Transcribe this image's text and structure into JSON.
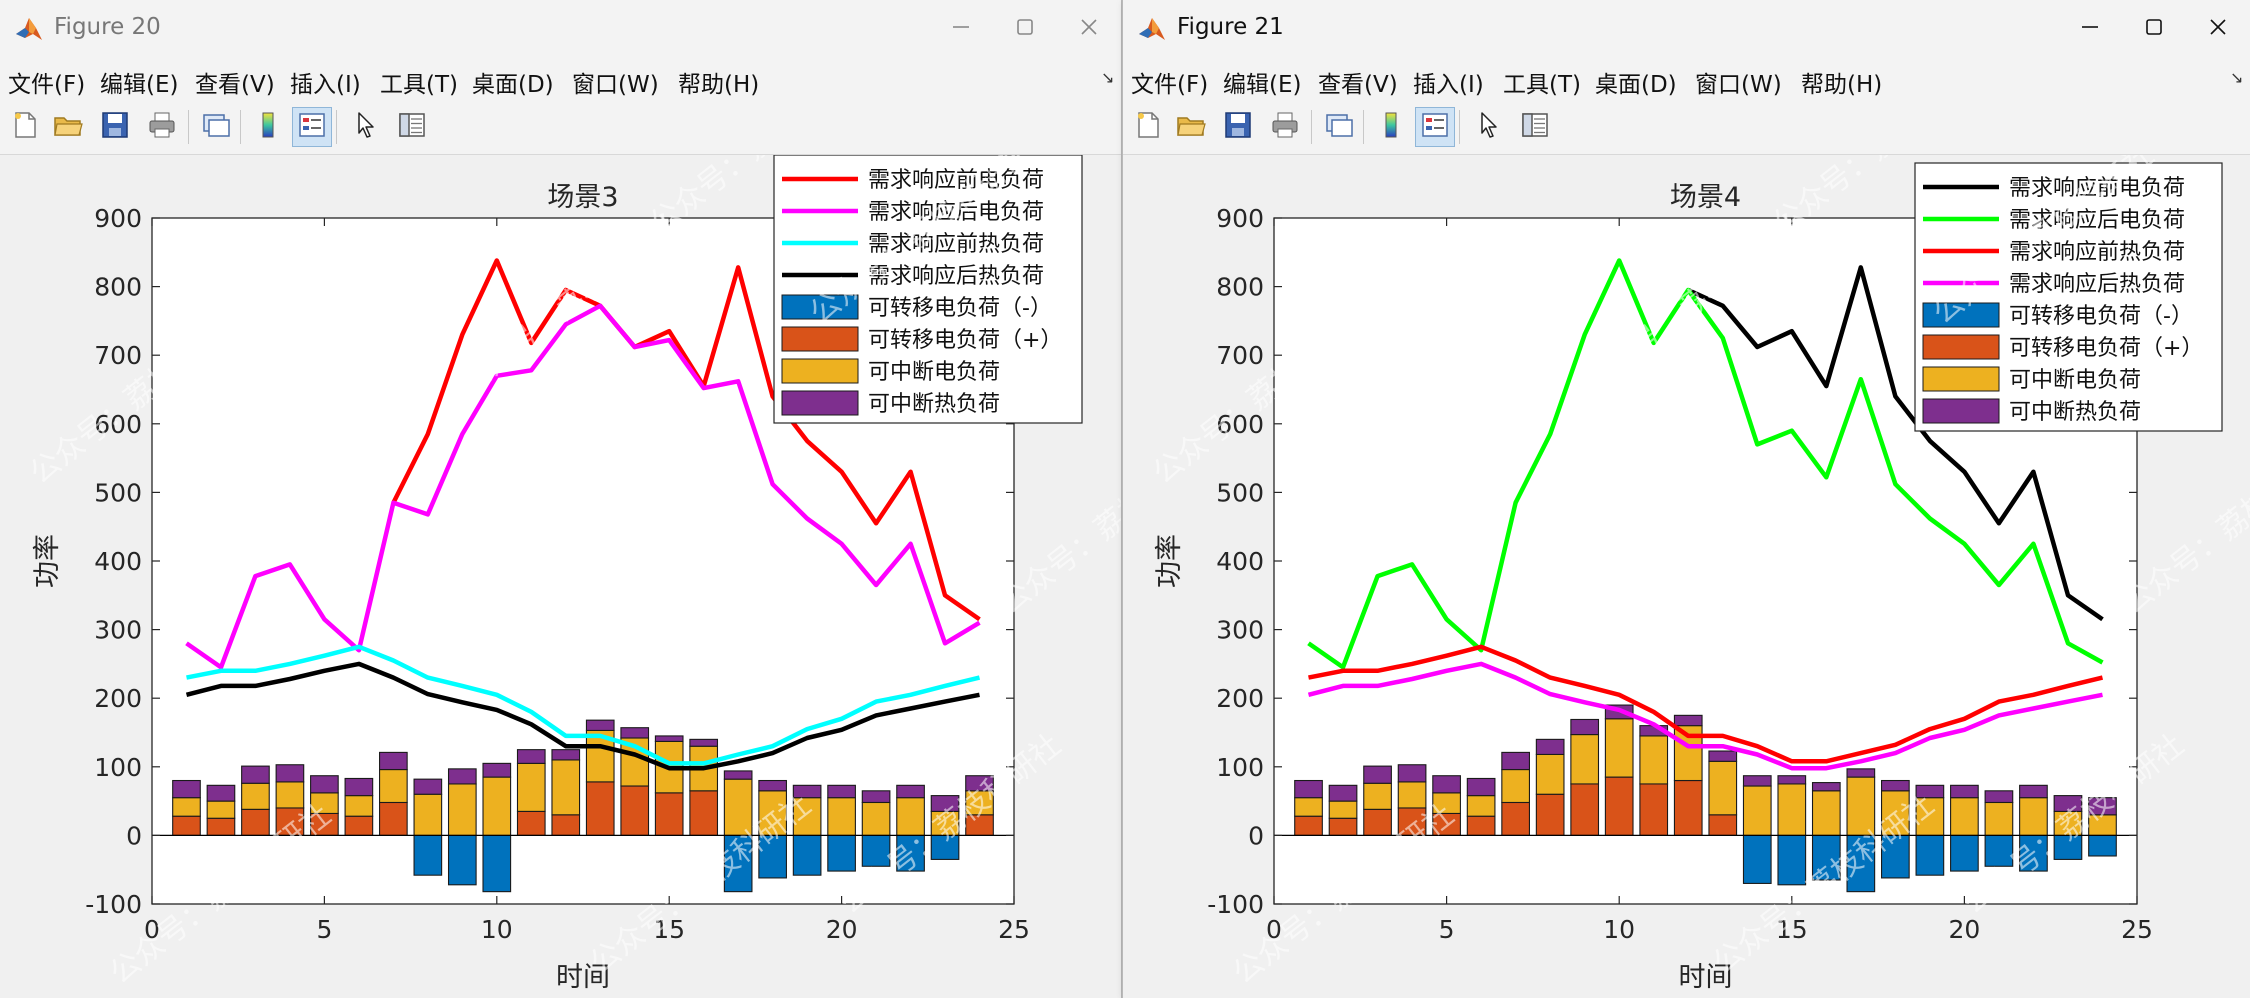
{
  "windows": [
    {
      "title": "Figure 20",
      "menu": [
        "文件(F)",
        "编辑(E)",
        "查看(V)",
        "插入(I)",
        "工具(T)",
        "桌面(D)",
        "窗口(W)",
        "帮助(H)"
      ]
    },
    {
      "title": "Figure 21",
      "menu": [
        "文件(F)",
        "编辑(E)",
        "查看(V)",
        "插入(I)",
        "工具(T)",
        "桌面(D)",
        "窗口(W)",
        "帮助(H)"
      ]
    }
  ],
  "toolbar_icons": [
    "new-figure-icon",
    "open-file-icon",
    "save-icon",
    "print-icon",
    "link-plot-icon",
    "colorbar-icon",
    "legend-icon",
    "pointer-icon",
    "property-inspector-icon"
  ],
  "watermark": "公众号：荔枝科研社",
  "chart_data": [
    {
      "type": "bar+line",
      "title": "场景3",
      "xlabel": "时间",
      "ylabel": "功率",
      "xlim": [
        0,
        25
      ],
      "ylim": [
        -100,
        900
      ],
      "xticks": [
        0,
        5,
        10,
        15,
        20,
        25
      ],
      "yticks": [
        -100,
        0,
        100,
        200,
        300,
        400,
        500,
        600,
        700,
        800,
        900
      ],
      "legend_position": "top-right",
      "x": [
        1,
        2,
        3,
        4,
        5,
        6,
        7,
        8,
        9,
        10,
        11,
        12,
        13,
        14,
        15,
        16,
        17,
        18,
        19,
        20,
        21,
        22,
        23,
        24
      ],
      "lines": [
        {
          "name": "需求响应前电负荷",
          "color": "#ff0000",
          "values": [
            null,
            null,
            null,
            null,
            null,
            null,
            485,
            585,
            730,
            838,
            718,
            795,
            772,
            712,
            735,
            655,
            828,
            640,
            575,
            530,
            455,
            530,
            350,
            315
          ]
        },
        {
          "name": "需求响应后电负荷",
          "color": "#ff00ff",
          "values": [
            280,
            245,
            378,
            395,
            315,
            270,
            485,
            468,
            585,
            670,
            678,
            745,
            772,
            712,
            722,
            652,
            662,
            512,
            462,
            425,
            365,
            425,
            280,
            310
          ]
        },
        {
          "name": "需求响应前热负荷",
          "color": "#00ffff",
          "values": [
            230,
            240,
            240,
            250,
            262,
            275,
            255,
            230,
            218,
            205,
            180,
            145,
            145,
            130,
            105,
            105,
            118,
            130,
            155,
            170,
            195,
            205,
            218,
            230
          ]
        },
        {
          "name": "需求响应后热负荷",
          "color": "#000000",
          "values": [
            205,
            218,
            218,
            228,
            240,
            250,
            230,
            206,
            194,
            183,
            162,
            130,
            130,
            118,
            98,
            98,
            108,
            120,
            142,
            154,
            175,
            185,
            195,
            205
          ]
        }
      ],
      "bars": [
        {
          "name": "可转移电负荷（-）",
          "color": "#0072bd",
          "values": [
            0,
            0,
            0,
            0,
            0,
            0,
            0,
            -58,
            -72,
            -82,
            0,
            0,
            0,
            0,
            0,
            0,
            -82,
            -62,
            -58,
            -52,
            -45,
            -52,
            -35,
            0
          ]
        },
        {
          "name": "可转移电负荷（+）",
          "color": "#d95319",
          "values": [
            28,
            25,
            38,
            40,
            32,
            28,
            48,
            0,
            0,
            0,
            35,
            30,
            78,
            72,
            62,
            65,
            0,
            0,
            0,
            0,
            0,
            0,
            0,
            30
          ]
        },
        {
          "name": "可中断电负荷",
          "color": "#edb120",
          "values": [
            27,
            25,
            38,
            38,
            30,
            30,
            48,
            60,
            75,
            85,
            70,
            80,
            75,
            70,
            75,
            65,
            82,
            65,
            55,
            55,
            48,
            55,
            35,
            35
          ]
        },
        {
          "name": "可中断热负荷",
          "color": "#7e2f8e",
          "values": [
            25,
            23,
            25,
            25,
            25,
            25,
            25,
            22,
            22,
            20,
            20,
            15,
            15,
            15,
            8,
            10,
            12,
            15,
            18,
            18,
            17,
            18,
            23,
            22
          ]
        }
      ]
    },
    {
      "type": "bar+line",
      "title": "场景4",
      "xlabel": "时间",
      "ylabel": "功率",
      "xlim": [
        0,
        25
      ],
      "ylim": [
        -100,
        900
      ],
      "xticks": [
        0,
        5,
        10,
        15,
        20,
        25
      ],
      "yticks": [
        -100,
        0,
        100,
        200,
        300,
        400,
        500,
        600,
        700,
        800,
        900
      ],
      "legend_position": "top-right",
      "x": [
        1,
        2,
        3,
        4,
        5,
        6,
        7,
        8,
        9,
        10,
        11,
        12,
        13,
        14,
        15,
        16,
        17,
        18,
        19,
        20,
        21,
        22,
        23,
        24
      ],
      "lines": [
        {
          "name": "需求响应前电负荷",
          "color": "#000000",
          "values": [
            null,
            null,
            null,
            null,
            null,
            null,
            null,
            null,
            null,
            null,
            null,
            795,
            772,
            712,
            735,
            655,
            828,
            640,
            575,
            530,
            455,
            530,
            350,
            315
          ]
        },
        {
          "name": "需求响应后电负荷",
          "color": "#00ff00",
          "values": [
            280,
            245,
            378,
            395,
            315,
            270,
            485,
            585,
            730,
            838,
            718,
            795,
            725,
            570,
            590,
            522,
            665,
            512,
            462,
            425,
            365,
            425,
            280,
            252
          ]
        },
        {
          "name": "需求响应前热负荷",
          "color": "#ff0000",
          "values": [
            230,
            240,
            240,
            250,
            262,
            275,
            255,
            230,
            218,
            205,
            180,
            145,
            145,
            130,
            108,
            108,
            120,
            132,
            155,
            170,
            195,
            205,
            218,
            230
          ]
        },
        {
          "name": "需求响应后热负荷",
          "color": "#ff00ff",
          "values": [
            205,
            218,
            218,
            228,
            240,
            250,
            230,
            206,
            194,
            183,
            162,
            130,
            130,
            118,
            98,
            98,
            108,
            120,
            142,
            154,
            175,
            185,
            195,
            205
          ]
        }
      ],
      "bars": [
        {
          "name": "可转移电负荷（-）",
          "color": "#0072bd",
          "values": [
            0,
            0,
            0,
            0,
            0,
            0,
            0,
            0,
            0,
            0,
            0,
            0,
            0,
            -70,
            -72,
            -65,
            -82,
            -62,
            -58,
            -52,
            -45,
            -52,
            -35,
            -30
          ]
        },
        {
          "name": "可转移电负荷（+）",
          "color": "#d95319",
          "values": [
            28,
            25,
            38,
            40,
            32,
            28,
            48,
            60,
            75,
            85,
            75,
            80,
            30,
            0,
            0,
            0,
            0,
            0,
            0,
            0,
            0,
            0,
            0,
            0
          ]
        },
        {
          "name": "可中断电负荷",
          "color": "#edb120",
          "values": [
            27,
            25,
            38,
            38,
            30,
            30,
            48,
            58,
            72,
            85,
            70,
            80,
            78,
            72,
            75,
            65,
            85,
            65,
            55,
            55,
            48,
            55,
            35,
            30
          ]
        },
        {
          "name": "可中断热负荷",
          "color": "#7e2f8e",
          "values": [
            25,
            23,
            25,
            25,
            25,
            25,
            25,
            22,
            22,
            20,
            15,
            15,
            15,
            15,
            12,
            12,
            12,
            15,
            18,
            18,
            17,
            18,
            23,
            25
          ]
        }
      ]
    }
  ]
}
